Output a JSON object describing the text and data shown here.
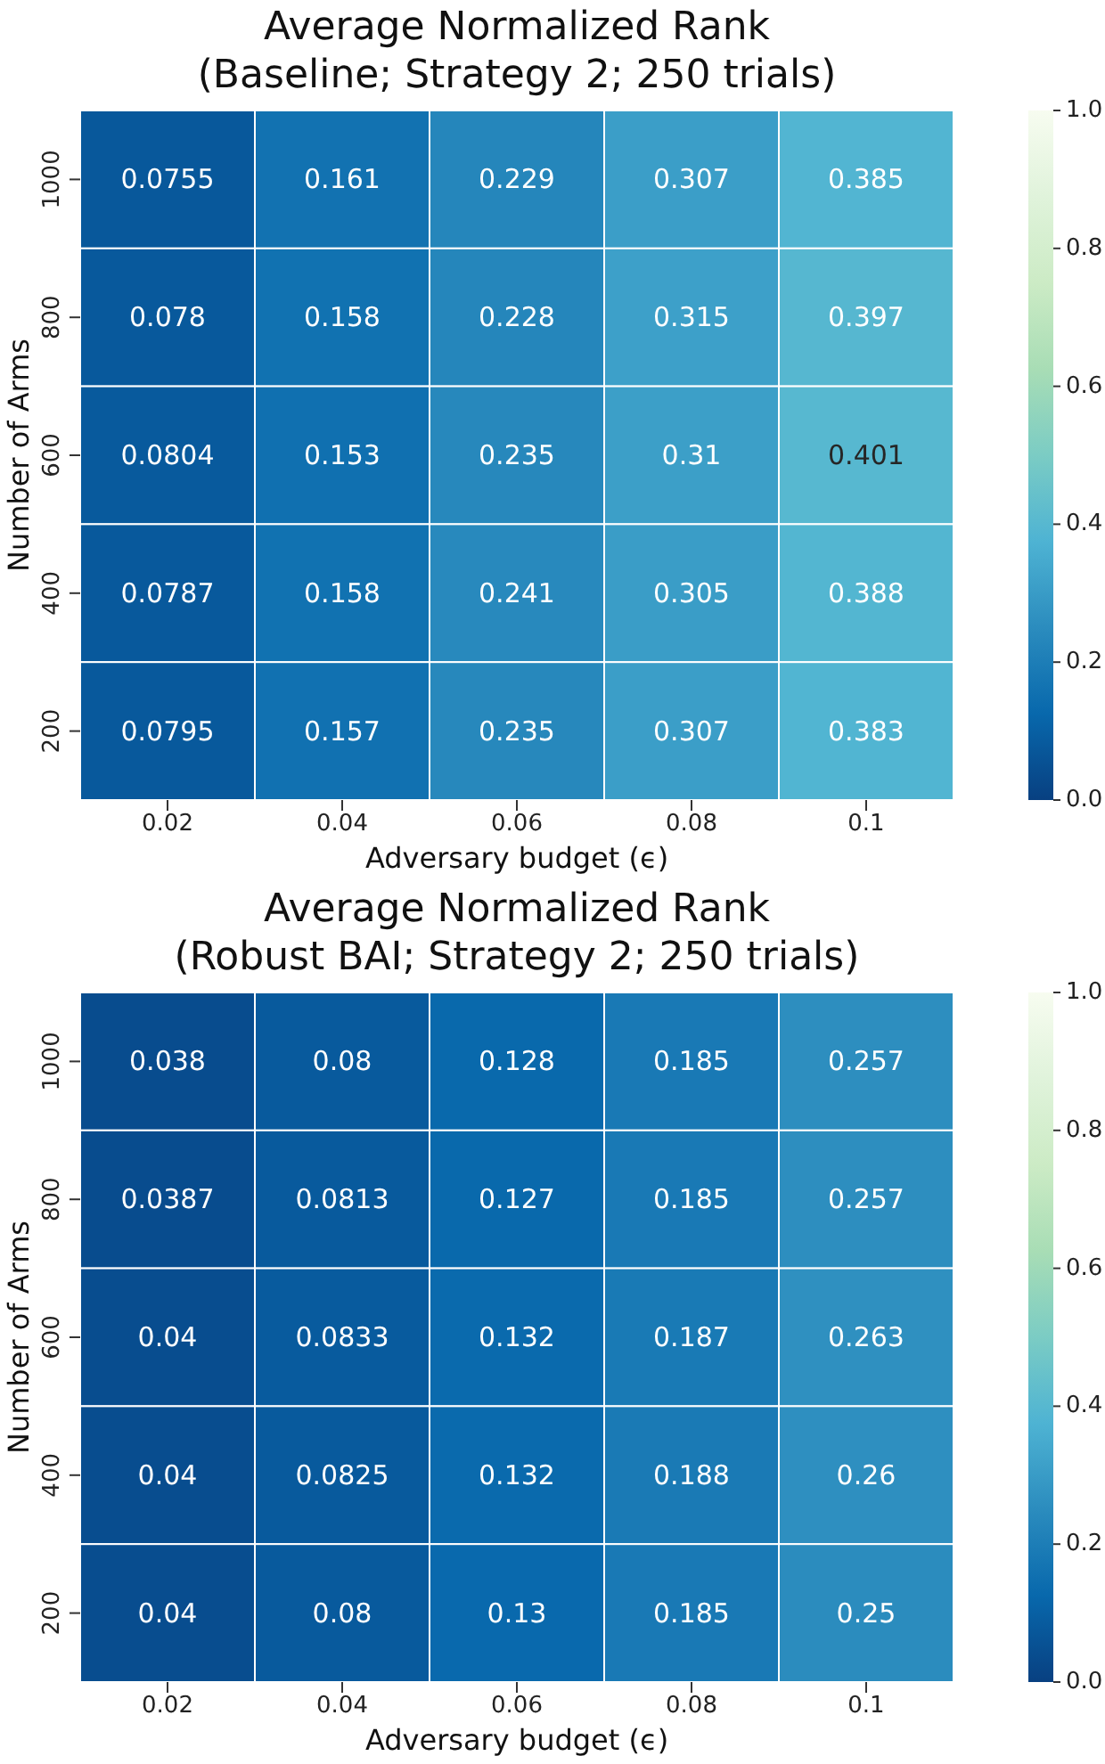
{
  "chart_data": [
    {
      "type": "heatmap",
      "title": "Average Normalized Rank\n(Baseline; Strategy 2; 250 trials)",
      "xlabel": "Adversary budget (ϵ)",
      "ylabel": "Number of Arms",
      "categories": [
        "0.02",
        "0.04",
        "0.06",
        "0.08",
        "0.1"
      ],
      "y_categories": [
        "1000",
        "800",
        "600",
        "400",
        "200"
      ],
      "cells": [
        [
          0.0755,
          0.161,
          0.229,
          0.307,
          0.385
        ],
        [
          0.078,
          0.158,
          0.228,
          0.315,
          0.397
        ],
        [
          0.0804,
          0.153,
          0.235,
          0.31,
          0.401
        ],
        [
          0.0787,
          0.158,
          0.241,
          0.305,
          0.388
        ],
        [
          0.0795,
          0.157,
          0.235,
          0.307,
          0.383
        ]
      ],
      "clim": [
        0,
        1
      ],
      "cticks": [
        {
          "value": 0,
          "label": "0.0"
        },
        {
          "value": 0.2,
          "label": "0.2"
        },
        {
          "value": 0.4,
          "label": "0.4"
        },
        {
          "value": 0.6,
          "label": "0.6"
        },
        {
          "value": 0.8,
          "label": "0.8"
        },
        {
          "value": 1,
          "label": "1.0"
        }
      ],
      "data_labels": true
    },
    {
      "type": "heatmap",
      "title": "Average Normalized Rank\n(Robust BAI; Strategy 2; 250 trials)",
      "xlabel": "Adversary budget (ϵ)",
      "ylabel": "Number of Arms",
      "categories": [
        "0.02",
        "0.04",
        "0.06",
        "0.08",
        "0.1"
      ],
      "y_categories": [
        "1000",
        "800",
        "600",
        "400",
        "200"
      ],
      "cells": [
        [
          0.038,
          0.08,
          0.128,
          0.185,
          0.257
        ],
        [
          0.0387,
          0.0813,
          0.127,
          0.185,
          0.257
        ],
        [
          0.04,
          0.0833,
          0.132,
          0.187,
          0.263
        ],
        [
          0.04,
          0.0825,
          0.132,
          0.188,
          0.26
        ],
        [
          0.04,
          0.08,
          0.13,
          0.185,
          0.25
        ]
      ],
      "clim": [
        0,
        1
      ],
      "cticks": [
        {
          "value": 0,
          "label": "0.0"
        },
        {
          "value": 0.2,
          "label": "0.2"
        },
        {
          "value": 0.4,
          "label": "0.4"
        },
        {
          "value": 0.6,
          "label": "0.6"
        },
        {
          "value": 0.8,
          "label": "0.8"
        },
        {
          "value": 1,
          "label": "1.0"
        }
      ],
      "data_labels": true
    }
  ]
}
